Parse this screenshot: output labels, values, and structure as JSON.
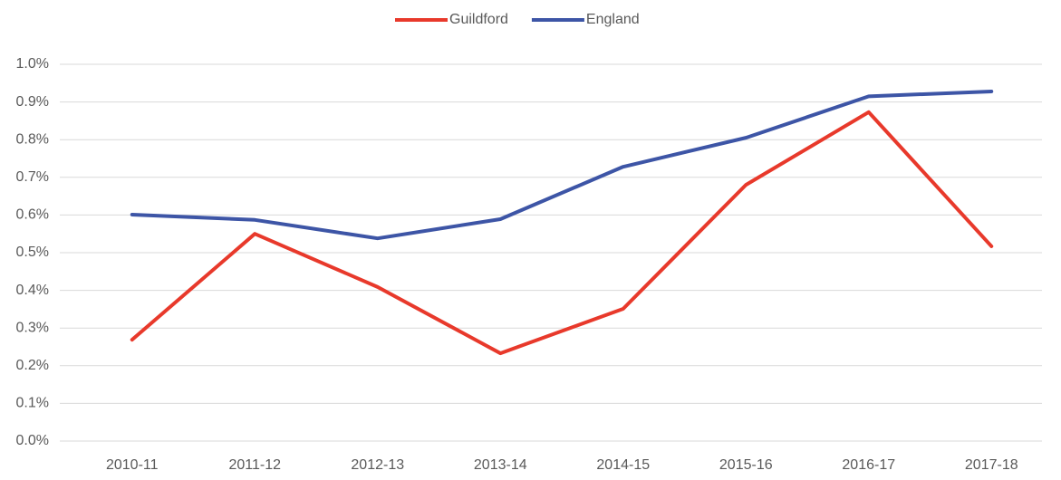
{
  "chart_data": {
    "type": "line",
    "categories": [
      "2010-11",
      "2011-12",
      "2012-13",
      "2013-14",
      "2014-15",
      "2015-16",
      "2016-17",
      "2017-18"
    ],
    "series": [
      {
        "name": "Guildford",
        "color": "#e8392b",
        "values": [
          0.269,
          0.55,
          0.409,
          0.233,
          0.351,
          0.68,
          0.873,
          0.517
        ]
      },
      {
        "name": "England",
        "color": "#3d55a6",
        "values": [
          0.601,
          0.587,
          0.538,
          0.589,
          0.728,
          0.805,
          0.915,
          0.928
        ]
      }
    ],
    "ylim": [
      0,
      1
    ],
    "yticks": [
      {
        "value": 0,
        "label": "0.0%"
      },
      {
        "value": 0.1,
        "label": "0.1%"
      },
      {
        "value": 0.2,
        "label": "0.2%"
      },
      {
        "value": 0.3,
        "label": "0.3%"
      },
      {
        "value": 0.4,
        "label": "0.4%"
      },
      {
        "value": 0.5,
        "label": "0.5%"
      },
      {
        "value": 0.6,
        "label": "0.6%"
      },
      {
        "value": 0.7,
        "label": "0.7%"
      },
      {
        "value": 0.8,
        "label": "0.8%"
      },
      {
        "value": 0.9,
        "label": "0.9%"
      },
      {
        "value": 1,
        "label": "1.0%"
      }
    ],
    "grid": true,
    "legend": "top"
  }
}
